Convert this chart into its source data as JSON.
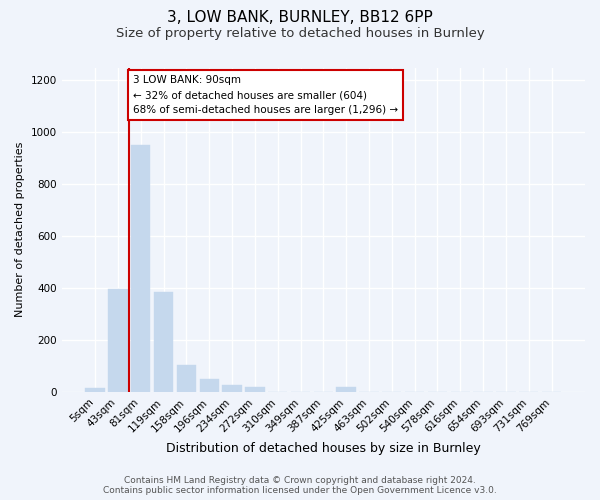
{
  "title1": "3, LOW BANK, BURNLEY, BB12 6PP",
  "title2": "Size of property relative to detached houses in Burnley",
  "xlabel": "Distribution of detached houses by size in Burnley",
  "ylabel": "Number of detached properties",
  "categories": [
    "5sqm",
    "43sqm",
    "81sqm",
    "119sqm",
    "158sqm",
    "196sqm",
    "234sqm",
    "272sqm",
    "310sqm",
    "349sqm",
    "387sqm",
    "425sqm",
    "463sqm",
    "502sqm",
    "540sqm",
    "578sqm",
    "616sqm",
    "654sqm",
    "693sqm",
    "731sqm",
    "769sqm"
  ],
  "values": [
    15,
    395,
    950,
    385,
    105,
    50,
    28,
    18,
    0,
    0,
    0,
    18,
    0,
    0,
    0,
    0,
    0,
    0,
    0,
    0,
    0
  ],
  "bar_color": "#c5d8ed",
  "bar_edge_color": "#c5d8ed",
  "vline_color": "#cc0000",
  "vline_x": 1.5,
  "annotation_text": "3 LOW BANK: 90sqm\n← 32% of detached houses are smaller (604)\n68% of semi-detached houses are larger (1,296) →",
  "annotation_box_facecolor": "#ffffff",
  "annotation_box_edgecolor": "#cc0000",
  "ylim": [
    0,
    1250
  ],
  "yticks": [
    0,
    200,
    400,
    600,
    800,
    1000,
    1200
  ],
  "footer_line1": "Contains HM Land Registry data © Crown copyright and database right 2024.",
  "footer_line2": "Contains public sector information licensed under the Open Government Licence v3.0.",
  "bg_color": "#f0f4fb",
  "grid_color": "#ffffff",
  "title1_fontsize": 11,
  "title2_fontsize": 9.5,
  "xlabel_fontsize": 9,
  "ylabel_fontsize": 8,
  "tick_fontsize": 7.5,
  "footer_fontsize": 6.5,
  "ann_fontsize": 7.5
}
